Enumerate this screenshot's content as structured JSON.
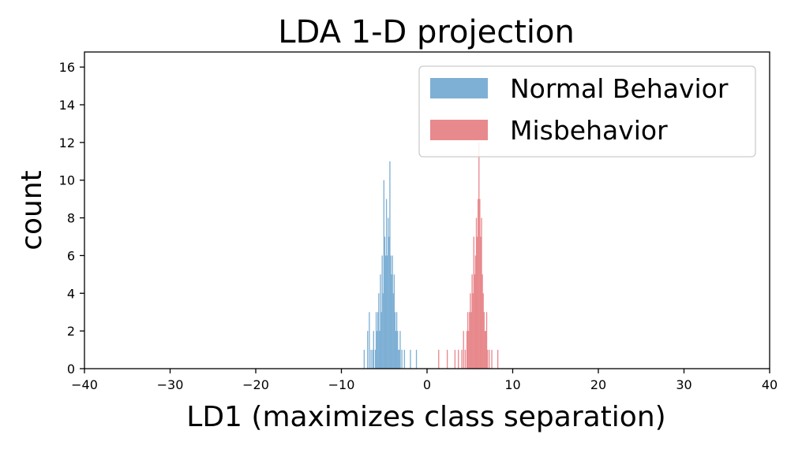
{
  "chart_data": {
    "type": "histogram",
    "title": "LDA 1-D projection",
    "xlabel": "LD1 (maximizes class separation)",
    "ylabel": "count",
    "xlim": [
      -40,
      40
    ],
    "ylim": [
      0,
      16.8
    ],
    "xticks": [
      -40,
      -30,
      -20,
      -10,
      0,
      10,
      20,
      30,
      40
    ],
    "xtick_labels": [
      "−40",
      "−30",
      "−20",
      "−10",
      "0",
      "10",
      "20",
      "30",
      "40"
    ],
    "yticks": [
      0,
      2,
      4,
      6,
      8,
      10,
      12,
      14,
      16
    ],
    "ytick_labels": [
      "0",
      "2",
      "4",
      "6",
      "8",
      "10",
      "12",
      "14",
      "16"
    ],
    "bin_width": 0.15,
    "legend_position": "upper-right",
    "series": [
      {
        "name": "Normal Behavior",
        "color": "#7eb0d5",
        "bins": [
          [
            -7.4,
            1
          ],
          [
            -7.0,
            2
          ],
          [
            -6.8,
            3
          ],
          [
            -6.6,
            1
          ],
          [
            -6.4,
            1
          ],
          [
            -6.3,
            2
          ],
          [
            -6.1,
            1
          ],
          [
            -6.0,
            3
          ],
          [
            -5.9,
            2
          ],
          [
            -5.8,
            3
          ],
          [
            -5.7,
            4
          ],
          [
            -5.6,
            2
          ],
          [
            -5.5,
            5
          ],
          [
            -5.4,
            3
          ],
          [
            -5.3,
            6
          ],
          [
            -5.2,
            4
          ],
          [
            -5.1,
            10
          ],
          [
            -5.0,
            7
          ],
          [
            -4.9,
            6
          ],
          [
            -4.8,
            9
          ],
          [
            -4.7,
            6
          ],
          [
            -4.6,
            8
          ],
          [
            -4.5,
            7
          ],
          [
            -4.4,
            11
          ],
          [
            -4.3,
            6
          ],
          [
            -4.2,
            5
          ],
          [
            -4.1,
            6
          ],
          [
            -4.0,
            4
          ],
          [
            -3.9,
            5
          ],
          [
            -3.8,
            3
          ],
          [
            -3.7,
            2
          ],
          [
            -3.6,
            3
          ],
          [
            -3.5,
            2
          ],
          [
            -3.4,
            1
          ],
          [
            -3.3,
            1
          ],
          [
            -3.2,
            2
          ],
          [
            -3.0,
            1
          ],
          [
            -2.7,
            1
          ],
          [
            -2.0,
            1
          ],
          [
            -1.3,
            1
          ]
        ]
      },
      {
        "name": "Misbehavior",
        "color": "#e8898d",
        "bins": [
          [
            1.3,
            1
          ],
          [
            2.3,
            1
          ],
          [
            3.2,
            1
          ],
          [
            3.6,
            1
          ],
          [
            4.0,
            1
          ],
          [
            4.2,
            2
          ],
          [
            4.4,
            1
          ],
          [
            4.6,
            2
          ],
          [
            4.7,
            3
          ],
          [
            4.8,
            2
          ],
          [
            4.9,
            3
          ],
          [
            5.0,
            4
          ],
          [
            5.1,
            3
          ],
          [
            5.2,
            5
          ],
          [
            5.3,
            4
          ],
          [
            5.4,
            7
          ],
          [
            5.5,
            5
          ],
          [
            5.6,
            6
          ],
          [
            5.7,
            8
          ],
          [
            5.8,
            7
          ],
          [
            5.9,
            9
          ],
          [
            6.0,
            12
          ],
          [
            6.1,
            9
          ],
          [
            6.2,
            7
          ],
          [
            6.3,
            8
          ],
          [
            6.4,
            5
          ],
          [
            6.5,
            4
          ],
          [
            6.6,
            3
          ],
          [
            6.7,
            2
          ],
          [
            6.8,
            2
          ],
          [
            6.9,
            3
          ],
          [
            7.0,
            1
          ],
          [
            7.2,
            1
          ],
          [
            7.5,
            1
          ],
          [
            8.2,
            1
          ]
        ]
      }
    ]
  }
}
